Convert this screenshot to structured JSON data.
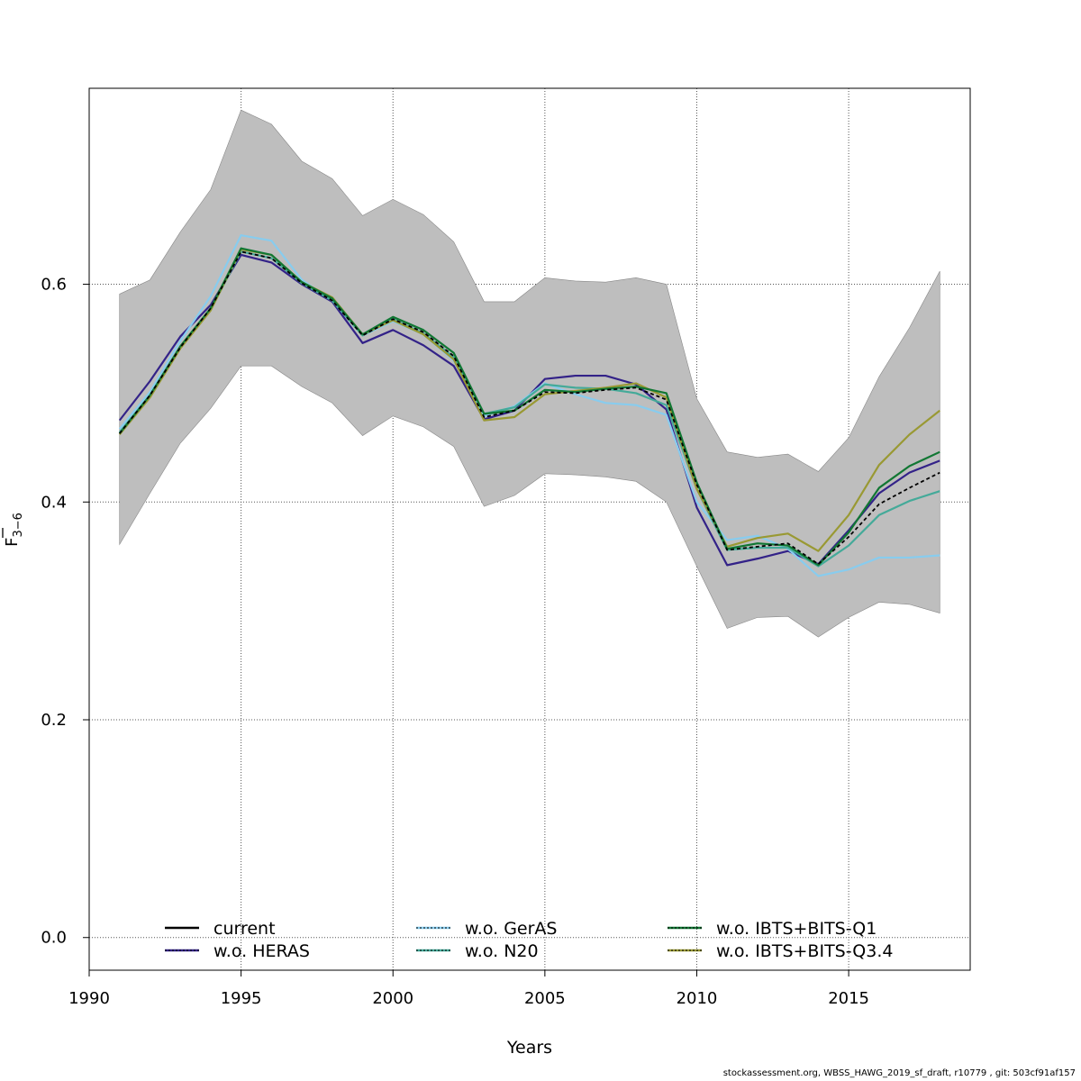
{
  "chart_data": {
    "type": "line",
    "xlabel": "Years",
    "ylabel": "F̅3−6",
    "ylabel_main": "F",
    "ylabel_sub": "3−6",
    "xlim": [
      1990,
      2019
    ],
    "ylim": [
      -0.03,
      0.78
    ],
    "x_ticks": [
      1990,
      1995,
      2000,
      2005,
      2010,
      2015
    ],
    "y_ticks": [
      0.0,
      0.2,
      0.4,
      0.6
    ],
    "y_tick_labels": [
      "0.0",
      "0.2",
      "0.4",
      "0.6"
    ],
    "grid": true,
    "legend_position": "bottom",
    "x": [
      1991,
      1992,
      1993,
      1994,
      1995,
      1996,
      1997,
      1998,
      1999,
      2000,
      2001,
      2002,
      2003,
      2004,
      2005,
      2006,
      2007,
      2008,
      2009,
      2010,
      2011,
      2012,
      2013,
      2014,
      2015,
      2016,
      2017,
      2018
    ],
    "band": {
      "color": "#bebebe",
      "upper": [
        0.591,
        0.604,
        0.648,
        0.687,
        0.76,
        0.747,
        0.713,
        0.697,
        0.663,
        0.678,
        0.664,
        0.639,
        0.584,
        0.584,
        0.606,
        0.603,
        0.602,
        0.606,
        0.6,
        0.495,
        0.446,
        0.441,
        0.444,
        0.428,
        0.459,
        0.515,
        0.56,
        0.612
      ],
      "lower": [
        0.361,
        0.408,
        0.454,
        0.486,
        0.525,
        0.525,
        0.506,
        0.491,
        0.461,
        0.479,
        0.469,
        0.451,
        0.396,
        0.406,
        0.426,
        0.425,
        0.423,
        0.419,
        0.4,
        0.341,
        0.284,
        0.294,
        0.295,
        0.276,
        0.294,
        0.308,
        0.306,
        0.298
      ]
    },
    "series": [
      {
        "name": "current",
        "color": "#000000",
        "values": [
          0.463,
          0.498,
          0.542,
          0.578,
          0.63,
          0.624,
          0.601,
          0.585,
          0.553,
          0.568,
          0.556,
          0.534,
          0.478,
          0.484,
          0.501,
          0.5,
          0.503,
          0.505,
          0.494,
          0.416,
          0.356,
          0.359,
          0.362,
          0.343,
          0.368,
          0.398,
          0.413,
          0.427
        ]
      },
      {
        "name": "w.o. HERAS",
        "color": "#332288",
        "values": [
          0.475,
          0.511,
          0.552,
          0.581,
          0.627,
          0.62,
          0.6,
          0.584,
          0.546,
          0.558,
          0.544,
          0.525,
          0.476,
          0.484,
          0.513,
          0.516,
          0.516,
          0.508,
          0.485,
          0.395,
          0.342,
          0.348,
          0.355,
          0.343,
          0.374,
          0.408,
          0.427,
          0.438
        ]
      },
      {
        "name": "w.o. GerAS",
        "color": "#88ccee",
        "values": [
          0.467,
          0.501,
          0.548,
          0.589,
          0.645,
          0.64,
          0.604,
          0.585,
          0.553,
          0.566,
          0.554,
          0.53,
          0.479,
          0.488,
          0.509,
          0.499,
          0.491,
          0.489,
          0.48,
          0.4,
          0.365,
          0.369,
          0.357,
          0.332,
          0.338,
          0.349,
          0.349,
          0.351
        ]
      },
      {
        "name": "w.o. N20",
        "color": "#44aa99",
        "values": [
          0.464,
          0.498,
          0.542,
          0.577,
          0.63,
          0.624,
          0.601,
          0.585,
          0.553,
          0.568,
          0.555,
          0.533,
          0.481,
          0.487,
          0.508,
          0.505,
          0.504,
          0.5,
          0.489,
          0.412,
          0.356,
          0.358,
          0.358,
          0.341,
          0.36,
          0.388,
          0.401,
          0.41
        ]
      },
      {
        "name": "w.o. IBTS+BITS-Q1",
        "color": "#117733",
        "values": [
          0.463,
          0.498,
          0.543,
          0.578,
          0.633,
          0.627,
          0.602,
          0.587,
          0.554,
          0.57,
          0.558,
          0.537,
          0.481,
          0.484,
          0.503,
          0.501,
          0.504,
          0.506,
          0.5,
          0.418,
          0.357,
          0.362,
          0.36,
          0.342,
          0.372,
          0.413,
          0.433,
          0.446
        ]
      },
      {
        "name": "w.o. IBTS+BITS-Q3.4",
        "color": "#999933",
        "values": [
          0.462,
          0.496,
          0.541,
          0.576,
          0.632,
          0.627,
          0.602,
          0.588,
          0.554,
          0.567,
          0.554,
          0.531,
          0.475,
          0.478,
          0.499,
          0.502,
          0.505,
          0.509,
          0.496,
          0.412,
          0.359,
          0.367,
          0.371,
          0.355,
          0.388,
          0.434,
          0.462,
          0.484
        ]
      }
    ]
  },
  "footer": {
    "text": "stockassessment.org, WBSS_HAWG_2019_sf_draft, r10779 , git: 503cf91af157"
  }
}
